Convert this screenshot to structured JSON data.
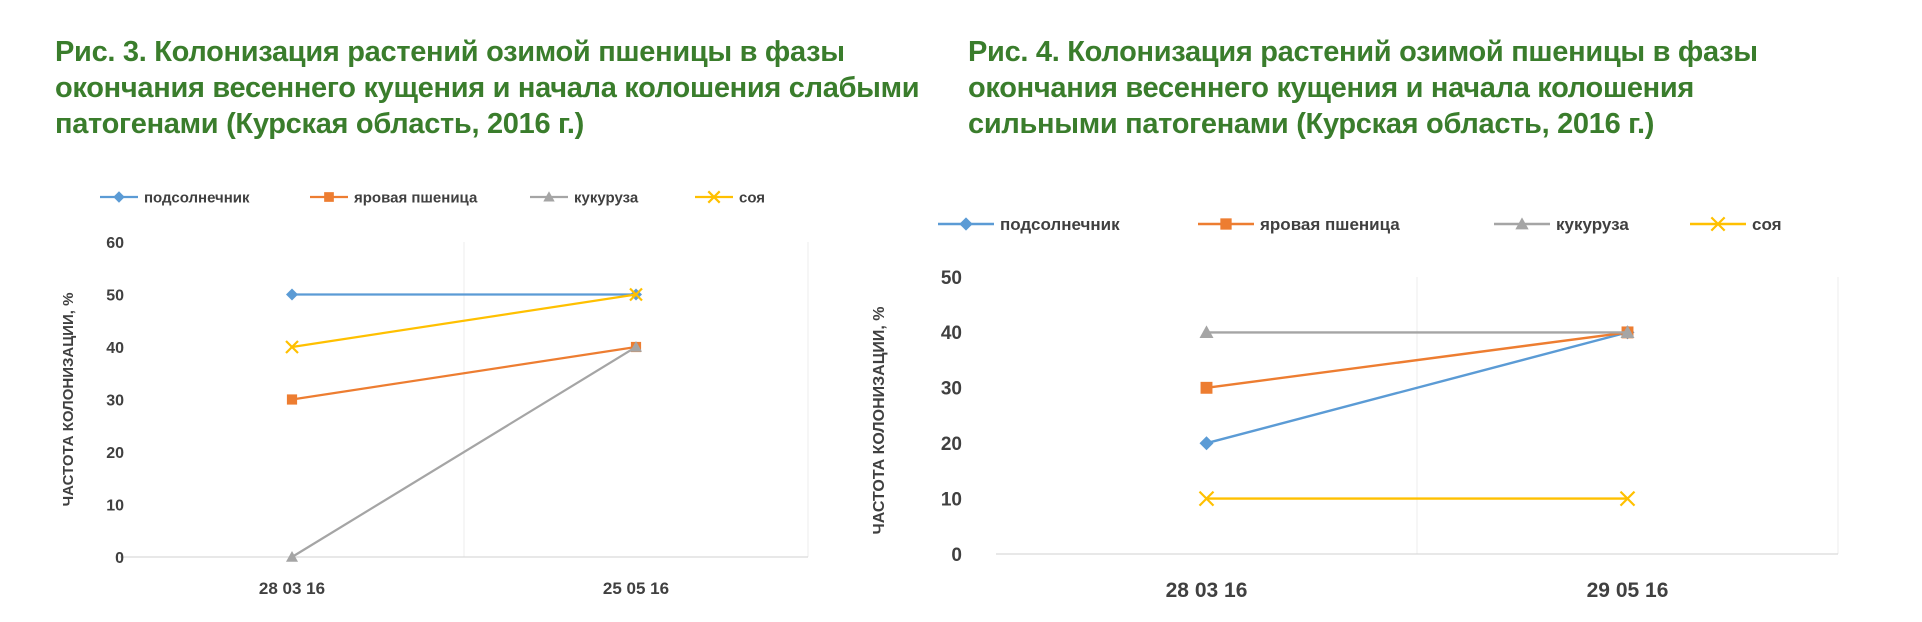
{
  "figures": [
    {
      "title": "Рис. 3. Колонизация растений озимой пшеницы в фазы окончания весеннего кущения и начала колошения слабыми патогенами (Курская область, 2016 г.)",
      "chart_data": {
        "type": "line",
        "categories": [
          "28 03 16",
          "25 05 16"
        ],
        "ylabel": "ЧАСТОТА КОЛОНИЗАЦИИ, %",
        "xlabel": "",
        "ylim": [
          0,
          60
        ],
        "yticks": [
          0,
          10,
          20,
          30,
          40,
          50,
          60
        ],
        "grid": "vertical",
        "legend_position": "top",
        "series": [
          {
            "name": "подсолнечник",
            "values": [
              50,
              50
            ],
            "color": "#5b9bd5",
            "marker": "diamond"
          },
          {
            "name": "яровая пшеница",
            "values": [
              30,
              40
            ],
            "color": "#ed7d31",
            "marker": "square"
          },
          {
            "name": "кукуруза",
            "values": [
              0,
              40
            ],
            "color": "#a5a5a5",
            "marker": "triangle"
          },
          {
            "name": "соя",
            "values": [
              40,
              50
            ],
            "color": "#ffc000",
            "marker": "x"
          }
        ]
      }
    },
    {
      "title": "Рис. 4. Колонизация растений озимой пшеницы в фазы окончания весеннего кущения и начала колошения сильными патогенами (Курская область, 2016 г.)",
      "chart_data": {
        "type": "line",
        "categories": [
          "28 03 16",
          "29 05 16"
        ],
        "ylabel": "ЧАСТОТА КОЛОНИЗАЦИИ, %",
        "xlabel": "",
        "ylim": [
          0,
          50
        ],
        "yticks": [
          0,
          10,
          20,
          30,
          40,
          50
        ],
        "grid": "vertical",
        "legend_position": "top",
        "series": [
          {
            "name": "подсолнечник",
            "values": [
              20,
              40
            ],
            "color": "#5b9bd5",
            "marker": "diamond"
          },
          {
            "name": "яровая пшеница",
            "values": [
              30,
              40
            ],
            "color": "#ed7d31",
            "marker": "square"
          },
          {
            "name": "кукуруза",
            "values": [
              40,
              40
            ],
            "color": "#a5a5a5",
            "marker": "triangle"
          },
          {
            "name": "соя",
            "values": [
              10,
              10
            ],
            "color": "#ffc000",
            "marker": "x"
          }
        ]
      }
    }
  ]
}
